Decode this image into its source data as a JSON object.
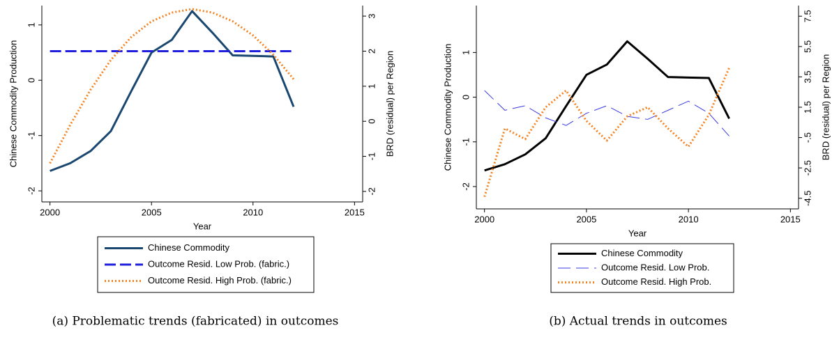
{
  "chart_data": [
    {
      "type": "line",
      "caption": "(a) Problematic trends (fabricated) in outcomes",
      "xlabel": "Year",
      "ylabel": "Chinese Commodity Production",
      "y2label": "BRD (residual) per Region",
      "x": [
        2000,
        2001,
        2002,
        2003,
        2004,
        2005,
        2006,
        2007,
        2008,
        2009,
        2010,
        2011,
        2012
      ],
      "xlim": [
        1999.6,
        2015.4
      ],
      "xticks": [
        2000,
        2005,
        2010,
        2015
      ],
      "ylim": [
        -2.2,
        1.35
      ],
      "yticks": [
        -2,
        -1,
        0,
        1
      ],
      "y2lim": [
        -2.3,
        3.3
      ],
      "y2ticks": [
        -2,
        -1,
        0,
        1,
        2,
        3
      ],
      "legend": "bottom",
      "series": [
        {
          "name": "Chinese Commodity",
          "color": "#1a476f",
          "style": "solid",
          "values": [
            -1.64,
            -1.5,
            -1.28,
            -0.92,
            -0.2,
            0.5,
            0.73,
            1.25,
            0.86,
            0.45,
            0.44,
            0.43,
            -0.48
          ]
        },
        {
          "name": "Outcome Resid. Low Prob. (fabric.)",
          "color": "#1f1fdc",
          "style": "dashed",
          "axis": "y2",
          "values": [
            2,
            2,
            2,
            2,
            2,
            2,
            2,
            2,
            2,
            2,
            2,
            2,
            2
          ]
        },
        {
          "name": "Outcome Resid. High Prob. (fabric.)",
          "color": "#f58220",
          "style": "dotted",
          "axis": "y2",
          "values": [
            -1.2,
            -0.1,
            0.9,
            1.75,
            2.4,
            2.85,
            3.1,
            3.2,
            3.1,
            2.85,
            2.45,
            1.9,
            1.2
          ]
        }
      ]
    },
    {
      "type": "line",
      "caption": "(b) Actual trends in outcomes",
      "xlabel": "Year",
      "ylabel": "Chinese Commodity Production",
      "y2label": "BRD (residual) per Region",
      "x": [
        2000,
        2001,
        2002,
        2003,
        2004,
        2005,
        2006,
        2007,
        2008,
        2009,
        2010,
        2011,
        2012
      ],
      "xlim": [
        1999.6,
        2015.4
      ],
      "xticks": [
        2000,
        2005,
        2010,
        2015
      ],
      "ylim": [
        -2.5,
        2.05
      ],
      "yticks": [
        -2,
        -1,
        0,
        1
      ],
      "y2lim": [
        -5.2,
        8.2
      ],
      "y2ticks": [
        {
          "value": -4.5,
          "label": "-4.5"
        },
        {
          "value": -2.5,
          "label": "-2.5"
        },
        {
          "value": -0.5,
          "label": "-.5"
        },
        1.5,
        3.5,
        5.5,
        7.5
      ],
      "legend": "bottom",
      "series": [
        {
          "name": "Chinese Commodity",
          "color": "#000000",
          "style": "solid",
          "values": [
            -1.64,
            -1.5,
            -1.28,
            -0.92,
            -0.2,
            0.5,
            0.73,
            1.25,
            0.86,
            0.45,
            0.44,
            0.43,
            -0.48
          ]
        },
        {
          "name": "Outcome Resid. Low Prob.",
          "color": "#3a3ae0",
          "style": "longdash",
          "axis": "y2",
          "values": [
            2.6,
            1.3,
            1.6,
            0.8,
            0.3,
            1.1,
            1.6,
            0.9,
            0.7,
            1.3,
            1.9,
            1.1,
            -0.4
          ]
        },
        {
          "name": "Outcome Resid. High Prob.",
          "color": "#f58220",
          "style": "dotted",
          "axis": "y2",
          "values": [
            -4.4,
            0.1,
            -0.6,
            1.5,
            2.6,
            0.6,
            -0.7,
            0.9,
            1.5,
            0.1,
            -1.1,
            1.0,
            4.1
          ]
        }
      ]
    }
  ]
}
